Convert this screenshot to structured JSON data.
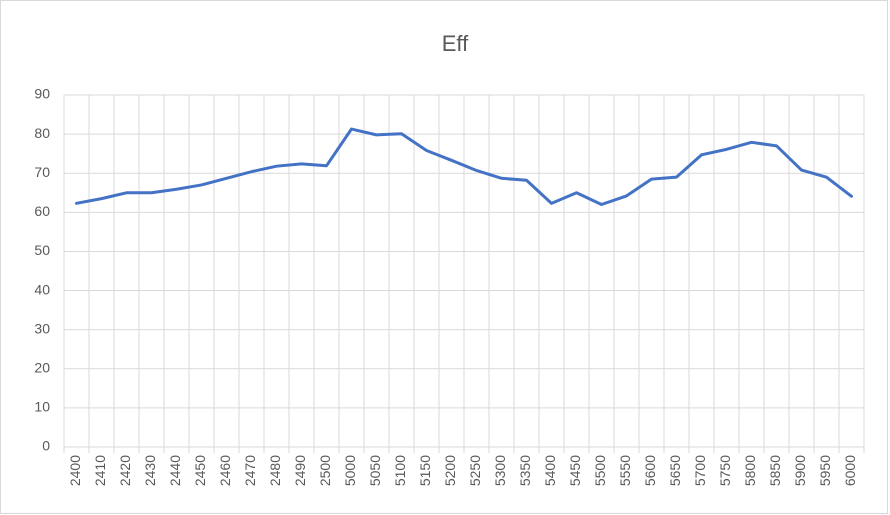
{
  "chart_data": {
    "type": "line",
    "title": "Eff",
    "categories": [
      "2400",
      "2410",
      "2420",
      "2430",
      "2440",
      "2450",
      "2460",
      "2470",
      "2480",
      "2490",
      "2500",
      "5000",
      "5050",
      "5100",
      "5150",
      "5200",
      "5250",
      "5300",
      "5350",
      "5400",
      "5450",
      "5500",
      "5550",
      "5600",
      "5650",
      "5700",
      "5750",
      "5800",
      "5850",
      "5900",
      "5950",
      "6000"
    ],
    "series": [
      {
        "name": "Eff",
        "color": "#4472c4",
        "values": [
          62.3,
          63.5,
          65,
          65,
          65.9,
          67,
          68.7,
          70.4,
          71.8,
          72.4,
          71.9,
          81.3,
          79.8,
          80.1,
          75.8,
          73.3,
          70.7,
          68.7,
          68.2,
          62.3,
          65,
          62,
          64.2,
          68.5,
          69,
          74.7,
          76.1,
          77.9,
          77,
          70.8,
          69,
          64.1
        ]
      }
    ],
    "ylim": [
      0,
      90
    ],
    "yticks": [
      0,
      10,
      20,
      30,
      40,
      50,
      60,
      70,
      80,
      90
    ],
    "grid": true
  }
}
